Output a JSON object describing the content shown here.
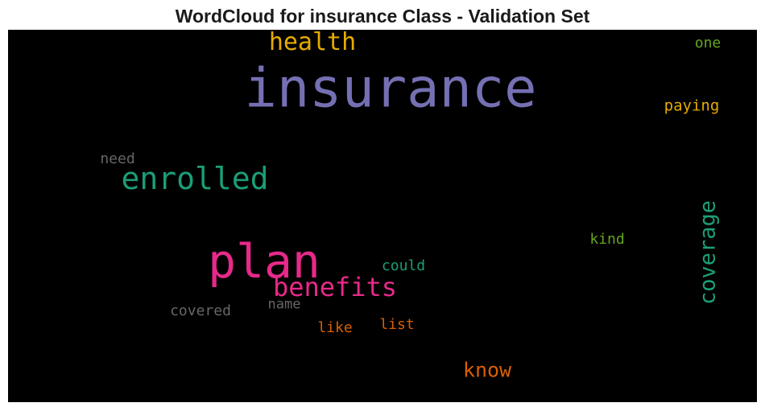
{
  "title": "WordCloud for insurance Class - Validation Set",
  "colors": {
    "background": "#000000",
    "purple": "#7570b3",
    "magenta": "#e7298a",
    "teal": "#1b9e77",
    "gold": "#e6ab02",
    "orange": "#d95f02",
    "green": "#66a61e",
    "gray": "#666666"
  },
  "words": {
    "insurance": "insurance",
    "plan": "plan",
    "enrolled": "enrolled",
    "health": "health",
    "benefits": "benefits",
    "coverage": "coverage",
    "know": "know",
    "paying": "paying",
    "one": "one",
    "need": "need",
    "kind": "kind",
    "could": "could",
    "covered": "covered",
    "name": "name",
    "like": "like",
    "list": "list"
  }
}
